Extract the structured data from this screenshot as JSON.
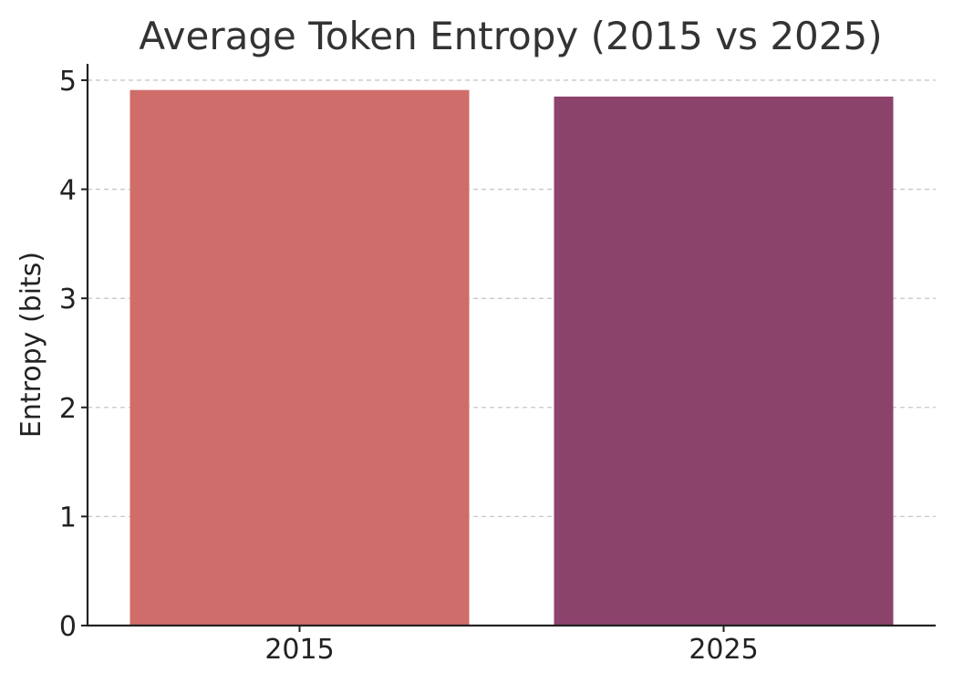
{
  "chart_data": {
    "type": "bar",
    "title": "Average Token Entropy (2015 vs 2025)",
    "xlabel": "",
    "ylabel": "Entropy (bits)",
    "categories": [
      "2015",
      "2025"
    ],
    "values": [
      4.91,
      4.85
    ],
    "colors": [
      "#cf6d6a",
      "#8b426b"
    ],
    "ylim": [
      0,
      5.15
    ],
    "yticks": [
      "0",
      "1",
      "2",
      "3",
      "4",
      "5"
    ],
    "grid": "y-dashed",
    "legend": "none"
  }
}
